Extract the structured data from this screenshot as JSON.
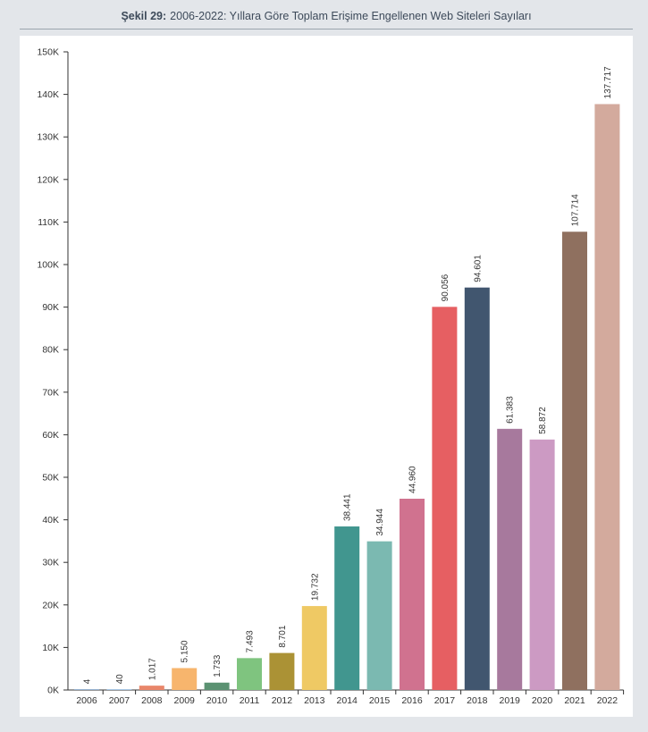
{
  "figure": {
    "number_label": "Şekil 29:",
    "caption": "2006-2022: Yıllara Göre Toplam Erişime Engellenen Web Siteleri Sayıları"
  },
  "chart_data": {
    "type": "bar",
    "title": "",
    "xlabel": "",
    "ylabel": "",
    "ylim": [
      0,
      150000
    ],
    "yticks": [
      {
        "value": 0,
        "label": "0K"
      },
      {
        "value": 10000,
        "label": "10K"
      },
      {
        "value": 20000,
        "label": "20K"
      },
      {
        "value": 30000,
        "label": "30K"
      },
      {
        "value": 40000,
        "label": "40K"
      },
      {
        "value": 50000,
        "label": "50K"
      },
      {
        "value": 60000,
        "label": "60K"
      },
      {
        "value": 70000,
        "label": "70K"
      },
      {
        "value": 80000,
        "label": "80K"
      },
      {
        "value": 90000,
        "label": "90K"
      },
      {
        "value": 100000,
        "label": "100K"
      },
      {
        "value": 110000,
        "label": "110K"
      },
      {
        "value": 120000,
        "label": "120K"
      },
      {
        "value": 130000,
        "label": "130K"
      },
      {
        "value": 140000,
        "label": "140K"
      },
      {
        "value": 150000,
        "label": "150K"
      }
    ],
    "grid": false,
    "categories": [
      "2006",
      "2007",
      "2008",
      "2009",
      "2010",
      "2011",
      "2012",
      "2013",
      "2014",
      "2015",
      "2016",
      "2017",
      "2018",
      "2019",
      "2020",
      "2021",
      "2022"
    ],
    "values": [
      4,
      40,
      1017,
      5150,
      1733,
      7493,
      8701,
      19732,
      38441,
      34944,
      44960,
      90056,
      94601,
      61383,
      58872,
      107714,
      137717
    ],
    "value_labels": [
      "4",
      "40",
      "1.017",
      "5.150",
      "1.733",
      "7.493",
      "8.701",
      "19.732",
      "38.441",
      "34.944",
      "44.960",
      "90.056",
      "94.601",
      "61.383",
      "58.872",
      "107.714",
      "137.717"
    ],
    "colors": [
      "#4f7fb0",
      "#6fa3d6",
      "#e9866a",
      "#f7b56d",
      "#5b9272",
      "#7fc47f",
      "#ab9235",
      "#efc964",
      "#41968f",
      "#7bb9b1",
      "#d0728f",
      "#e65f62",
      "#41566f",
      "#a7799d",
      "#cc9ac3",
      "#8f705f",
      "#d3aa9d"
    ]
  }
}
